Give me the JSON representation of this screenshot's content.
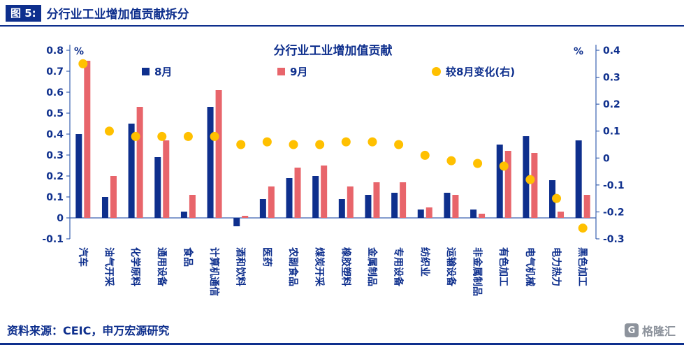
{
  "header": {
    "figure_label": "图 5:",
    "figure_title": "分行业工业增加值贡献拆分"
  },
  "footer": {
    "source": "资料来源：CEIC，申万宏源研究"
  },
  "logo": {
    "icon": "G",
    "text": "格隆汇"
  },
  "colors": {
    "navy": "#0e2f8d",
    "salmon": "#e8656b",
    "yellow": "#ffc000",
    "axis": "#3a62b0",
    "logo_gray": "#8d939c"
  },
  "chart_data": {
    "type": "bar",
    "title": "分行业工业增加值贡献",
    "legend_position": "top",
    "grid": false,
    "left_axis": {
      "unit": "%",
      "min": -0.1,
      "max": 0.8,
      "tick_step": 0.1
    },
    "right_axis": {
      "unit": "%",
      "min": -0.3,
      "max": 0.4,
      "tick_step": 0.1
    },
    "categories": [
      "汽车",
      "油气开采",
      "化学原料",
      "通用设备",
      "食品",
      "计算机通信",
      "酒和饮料",
      "医药",
      "农副食品",
      "煤炭开采",
      "橡胶塑料",
      "金属制品",
      "专用设备",
      "纺织业",
      "运输设备",
      "非金属制品",
      "有色加工",
      "电气机械",
      "电力热力",
      "黑色加工"
    ],
    "series": [
      {
        "name": "8月",
        "type": "bar",
        "axis": "left",
        "color": "#0e2f8d",
        "values": [
          0.4,
          0.1,
          0.45,
          0.29,
          0.03,
          0.53,
          -0.04,
          0.09,
          0.19,
          0.2,
          0.09,
          0.11,
          0.12,
          0.04,
          0.12,
          0.04,
          0.35,
          0.39,
          0.18,
          0.37
        ]
      },
      {
        "name": "9月",
        "type": "bar",
        "axis": "left",
        "color": "#e8656b",
        "values": [
          0.75,
          0.2,
          0.53,
          0.37,
          0.11,
          0.61,
          0.01,
          0.15,
          0.24,
          0.25,
          0.15,
          0.17,
          0.17,
          0.05,
          0.11,
          0.02,
          0.32,
          0.31,
          0.03,
          0.11
        ]
      },
      {
        "name": "较8月变化(右)",
        "type": "scatter",
        "axis": "right",
        "color": "#ffc000",
        "values": [
          0.35,
          0.1,
          0.08,
          0.08,
          0.08,
          0.08,
          0.05,
          0.06,
          0.05,
          0.05,
          0.06,
          0.06,
          0.05,
          0.01,
          -0.01,
          -0.02,
          -0.03,
          -0.08,
          -0.15,
          -0.26
        ]
      }
    ]
  }
}
